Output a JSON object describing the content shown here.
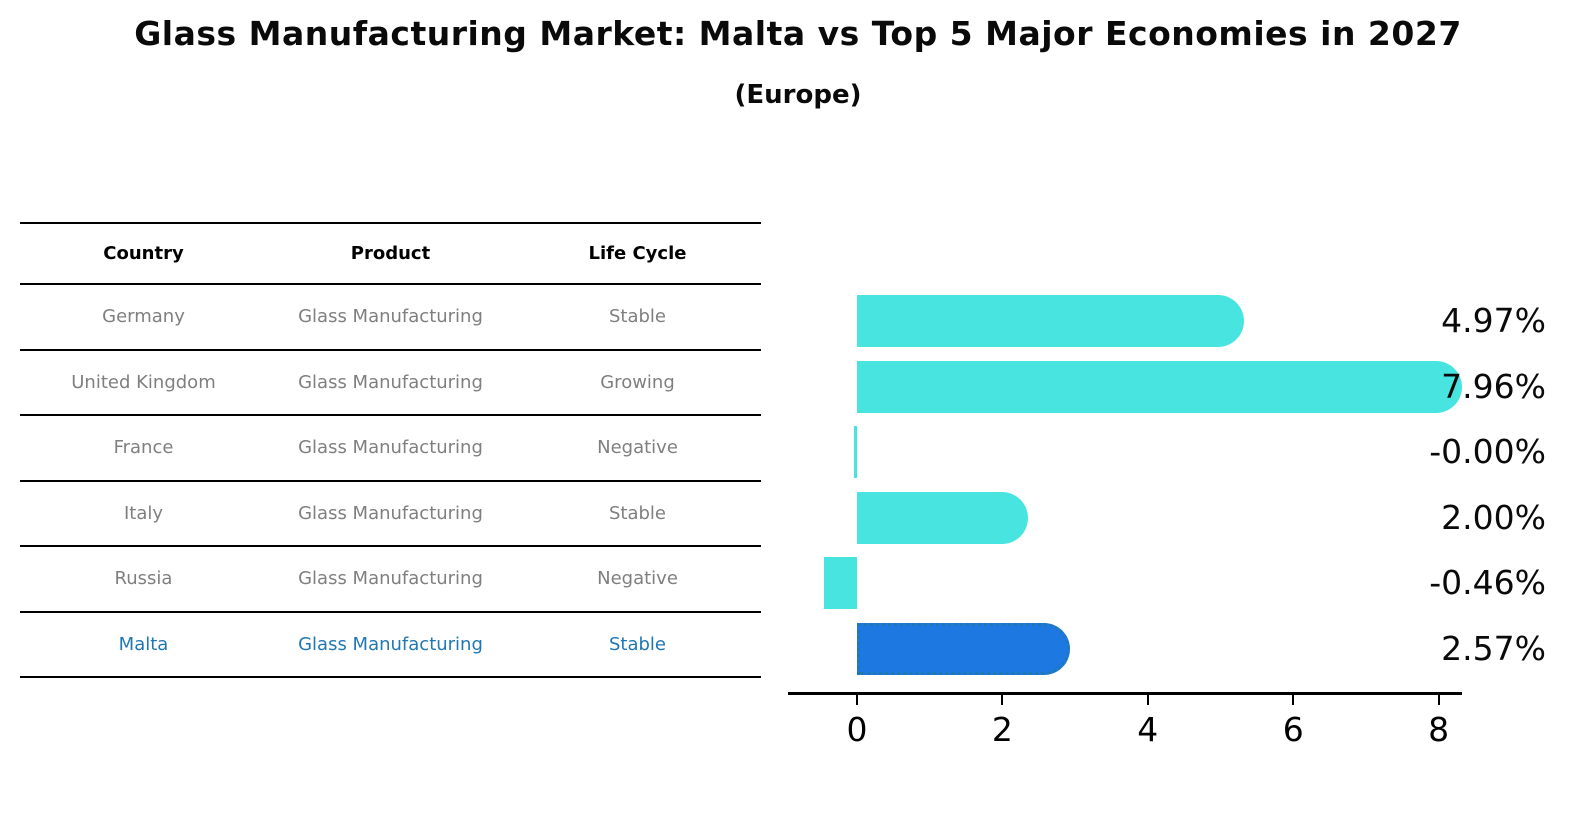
{
  "title": "Glass Manufacturing Market: Malta vs Top 5 Major Economies in 2027",
  "subtitle": "(Europe)",
  "table": {
    "headers": [
      "Country",
      "Product",
      "Life Cycle"
    ],
    "rows": [
      {
        "country": "Germany",
        "product": "Glass Manufacturing",
        "life_cycle": "Stable",
        "highlight": false
      },
      {
        "country": "United Kingdom",
        "product": "Glass Manufacturing",
        "life_cycle": "Growing",
        "highlight": false
      },
      {
        "country": "France",
        "product": "Glass Manufacturing",
        "life_cycle": "Negative",
        "highlight": false
      },
      {
        "country": "Italy",
        "product": "Glass Manufacturing",
        "life_cycle": "Stable",
        "highlight": false
      },
      {
        "country": "Russia",
        "product": "Glass Manufacturing",
        "life_cycle": "Negative",
        "highlight": false
      },
      {
        "country": "Malta",
        "product": "Glass Manufacturing",
        "life_cycle": "Stable",
        "highlight": true
      }
    ]
  },
  "chart_data": {
    "type": "bar",
    "orientation": "horizontal",
    "categories": [
      "Germany",
      "United Kingdom",
      "France",
      "Italy",
      "Russia",
      "Malta"
    ],
    "values": [
      4.97,
      7.96,
      -0.0,
      2.0,
      -0.46,
      2.57
    ],
    "value_labels": [
      "4.97%",
      "7.96%",
      "-0.00%",
      "2.00%",
      "-0.46%",
      "2.57%"
    ],
    "x_ticks": [
      0,
      2,
      4,
      6,
      8
    ],
    "xlim": [
      -0.95,
      8.35
    ],
    "grid": false,
    "legend": false,
    "bar_color": "#48E5E0",
    "highlight_index": 5,
    "highlight_color": "#1E78E1",
    "highlight_border_color": "#1f77b4",
    "highlight_text_color": "#1f77b4",
    "text_color_muted": "#7f7f7f"
  }
}
